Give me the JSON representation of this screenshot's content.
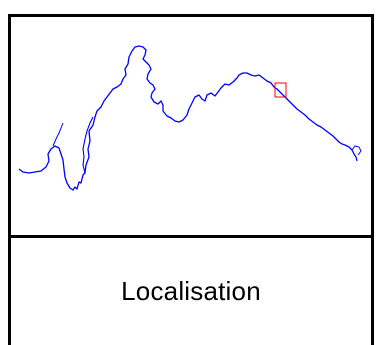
{
  "caption": {
    "label": "Localisation"
  },
  "map": {
    "river_color": "#0000ff",
    "marker_color": "#ff0000",
    "frame_color": "#000000"
  }
}
